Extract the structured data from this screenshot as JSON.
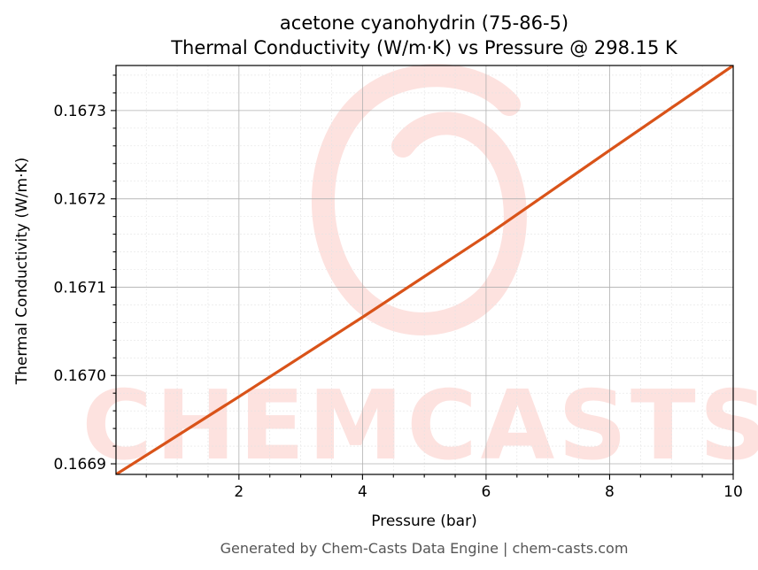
{
  "chart_data": {
    "type": "line",
    "title_line1": "acetone cyanohydrin (75-86-5)",
    "title_line2": "Thermal Conductivity (W/m·K) vs Pressure @ 298.15 K",
    "xlabel": "Pressure (bar)",
    "ylabel": "Thermal Conductivity (W/m·K)",
    "xlim": [
      0.01,
      10
    ],
    "ylim": [
      0.166888,
      0.167351
    ],
    "x_ticks": [
      2,
      4,
      6,
      8,
      10
    ],
    "x_tick_labels": [
      "2",
      "4",
      "6",
      "8",
      "10"
    ],
    "y_ticks": [
      0.1669,
      0.167,
      0.1671,
      0.1672,
      0.1673
    ],
    "y_tick_labels": [
      "0.1669",
      "0.1670",
      "0.1671",
      "0.1672",
      "0.1673"
    ],
    "grid": true,
    "series": [
      {
        "color": "#d95319",
        "x": [
          0.01,
          2,
          4,
          6,
          8,
          10
        ],
        "y": [
          0.166888,
          0.166976,
          0.167066,
          0.167158,
          0.167255,
          0.167351
        ]
      }
    ]
  },
  "watermark": {
    "text": "CHEMCASTS",
    "color": "#fde2df"
  },
  "footer": {
    "text": "Generated by Chem-Casts Data Engine | chem-casts.com"
  }
}
